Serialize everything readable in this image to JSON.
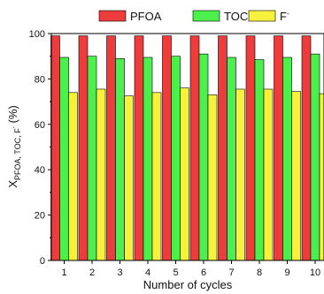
{
  "chart_data": {
    "type": "bar",
    "title": "",
    "xlabel": "Number of cycles",
    "ylabel": {
      "main": "X",
      "subscript": "PFOA, TOC, F",
      "subscript_sup": "-",
      "suffix": " (%)"
    },
    "ylim": [
      0,
      100
    ],
    "y_ticks": [
      "0",
      "20",
      "40",
      "60",
      "80",
      "100"
    ],
    "categories": [
      "1",
      "2",
      "3",
      "4",
      "5",
      "6",
      "7",
      "8",
      "9",
      "10"
    ],
    "legend_position": "top",
    "grid": false,
    "series": [
      {
        "name": "PFOA",
        "color": "#ee3b3b",
        "values": [
          99,
          99,
          99,
          99,
          99,
          99,
          99,
          99,
          99,
          99
        ]
      },
      {
        "name": "TOC",
        "color": "#4cf04c",
        "values": [
          89.5,
          90,
          89,
          89.5,
          90,
          91,
          89.5,
          88.5,
          89.5,
          91
        ]
      },
      {
        "name": "F",
        "name_sup": "-",
        "color": "#f7f03c",
        "values": [
          74,
          75.5,
          72.5,
          74,
          76,
          73,
          75.5,
          75.5,
          74.5,
          73.5
        ]
      }
    ]
  }
}
